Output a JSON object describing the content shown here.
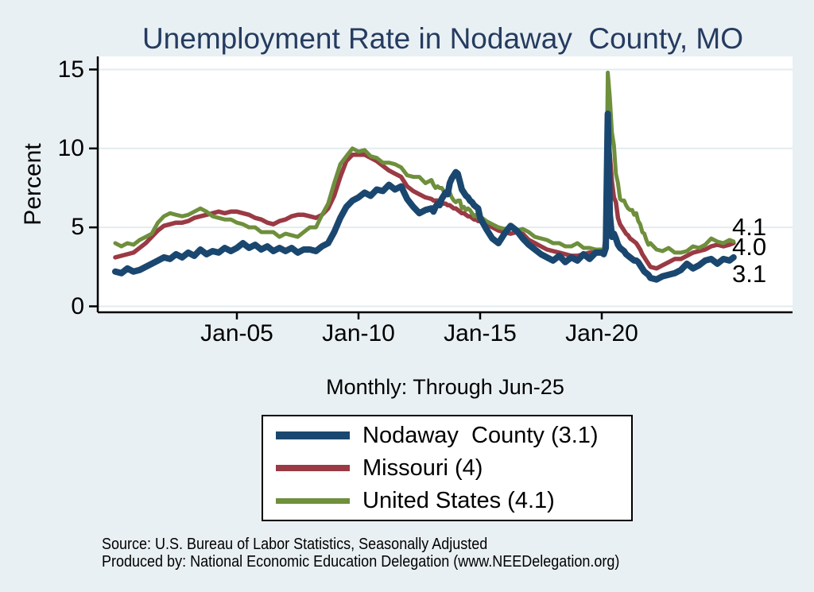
{
  "title": "Unemployment Rate in Nodaway  County, MO",
  "subtitle": "Monthly: Through Jun-25",
  "source_line1": "Source: U.S. Bureau of Labor Statistics, Seasonally Adjusted",
  "source_line2": "Produced by: National Economic Education Delegation (www.NEEDelegation.org)",
  "colors": {
    "background": "#e9f0f3",
    "plot_bg": "#ffffff",
    "grid": "#e2ecef",
    "axis": "#000000",
    "title_text": "#253b60",
    "nodaway": "#1a476f",
    "missouri": "#9a3a44",
    "us": "#6e8f3c"
  },
  "chart_data": {
    "type": "line",
    "title": "Unemployment Rate in Nodaway  County, MO",
    "xlabel": "",
    "ylabel": "Percent",
    "ylim": [
      0,
      15.8
    ],
    "x_range_label": "Jan-2000 through Jun-2025, monthly",
    "grid": true,
    "legend_position": "bottom",
    "y_ticks": [
      0,
      5,
      10,
      15
    ],
    "x_ticks": [
      {
        "label": "Jan-05",
        "year": 2005
      },
      {
        "label": "Jan-10",
        "year": 2010
      },
      {
        "label": "Jan-15",
        "year": 2015
      },
      {
        "label": "Jan-20",
        "year": 2020
      }
    ],
    "end_labels": [
      "4.1",
      "4.0",
      "3.1"
    ],
    "x": [
      2000,
      2000.25,
      2000.5,
      2000.75,
      2001,
      2001.25,
      2001.5,
      2001.75,
      2002,
      2002.25,
      2002.5,
      2002.75,
      2003,
      2003.25,
      2003.5,
      2003.75,
      2004,
      2004.25,
      2004.5,
      2004.75,
      2005,
      2005.25,
      2005.5,
      2005.75,
      2006,
      2006.25,
      2006.5,
      2006.75,
      2007,
      2007.25,
      2007.5,
      2007.75,
      2008,
      2008.25,
      2008.5,
      2008.75,
      2009,
      2009.25,
      2009.5,
      2009.75,
      2010,
      2010.25,
      2010.5,
      2010.75,
      2011,
      2011.25,
      2011.5,
      2011.75,
      2012,
      2012.25,
      2012.5,
      2012.75,
      2013,
      2013.083,
      2013.167,
      2013.25,
      2013.333,
      2013.417,
      2013.5,
      2013.583,
      2013.667,
      2013.75,
      2013.833,
      2013.917,
      2014,
      2014.083,
      2014.167,
      2014.25,
      2014.333,
      2014.417,
      2014.5,
      2014.583,
      2014.667,
      2014.75,
      2014.833,
      2014.917,
      2015,
      2015.25,
      2015.5,
      2015.75,
      2016,
      2016.25,
      2016.5,
      2016.75,
      2017,
      2017.25,
      2017.5,
      2017.75,
      2018,
      2018.25,
      2018.5,
      2018.75,
      2019,
      2019.25,
      2019.5,
      2019.75,
      2020,
      2020.083,
      2020.167,
      2020.25,
      2020.333,
      2020.417,
      2020.5,
      2020.583,
      2020.667,
      2020.75,
      2020.833,
      2020.917,
      2021,
      2021.083,
      2021.167,
      2021.25,
      2021.333,
      2021.417,
      2021.5,
      2021.583,
      2021.667,
      2021.75,
      2021.833,
      2021.917,
      2022,
      2022.25,
      2022.5,
      2022.75,
      2023,
      2023.25,
      2023.5,
      2023.75,
      2024,
      2024.25,
      2024.5,
      2024.75,
      2025,
      2025.25,
      2025.417
    ],
    "series": [
      {
        "name": "Nodaway  County (3.1)",
        "latest": 3.1,
        "color": "#1a476f",
        "line_width": 8,
        "values": [
          2.2,
          2.1,
          2.4,
          2.2,
          2.3,
          2.5,
          2.7,
          2.9,
          3.1,
          3.0,
          3.3,
          3.1,
          3.4,
          3.2,
          3.6,
          3.3,
          3.5,
          3.4,
          3.7,
          3.5,
          3.7,
          4.0,
          3.7,
          3.9,
          3.6,
          3.8,
          3.5,
          3.7,
          3.5,
          3.7,
          3.4,
          3.6,
          3.6,
          3.5,
          3.8,
          4.0,
          4.7,
          5.6,
          6.3,
          6.7,
          6.9,
          7.2,
          7.0,
          7.4,
          7.3,
          7.7,
          7.4,
          7.6,
          6.8,
          6.3,
          5.9,
          6.1,
          6.2,
          6.0,
          6.3,
          6.5,
          6.4,
          6.8,
          7.0,
          7.2,
          7.1,
          7.8,
          8.1,
          8.3,
          8.5,
          8.4,
          7.9,
          7.4,
          7.2,
          7.0,
          6.9,
          6.7,
          6.6,
          6.4,
          6.3,
          6.2,
          5.6,
          4.9,
          4.3,
          4.0,
          4.6,
          5.1,
          4.8,
          4.3,
          3.9,
          3.6,
          3.3,
          3.1,
          2.9,
          3.2,
          2.8,
          3.1,
          2.9,
          3.3,
          3.0,
          3.4,
          3.4,
          3.3,
          3.7,
          12.2,
          5.8,
          4.4,
          4.6,
          4.3,
          3.9,
          3.7,
          3.6,
          3.5,
          3.3,
          3.2,
          3.1,
          3.0,
          2.9,
          2.9,
          2.8,
          2.6,
          2.4,
          2.2,
          2.1,
          2.0,
          1.8,
          1.7,
          1.9,
          2.0,
          2.1,
          2.3,
          2.7,
          2.4,
          2.6,
          2.9,
          3.0,
          2.7,
          3.0,
          2.9,
          3.1
        ]
      },
      {
        "name": "Missouri (4)",
        "latest": 4.0,
        "color": "#9a3a44",
        "line_width": 5.5,
        "values": [
          3.1,
          3.2,
          3.3,
          3.4,
          3.7,
          4.0,
          4.4,
          4.8,
          5.1,
          5.2,
          5.3,
          5.3,
          5.4,
          5.6,
          5.7,
          5.8,
          5.9,
          6.0,
          5.9,
          6.0,
          6.0,
          5.9,
          5.8,
          5.6,
          5.5,
          5.3,
          5.2,
          5.4,
          5.5,
          5.7,
          5.8,
          5.8,
          5.7,
          5.6,
          5.8,
          6.2,
          7.0,
          8.2,
          9.2,
          9.6,
          9.6,
          9.6,
          9.4,
          9.2,
          8.9,
          8.6,
          8.4,
          8.2,
          7.6,
          7.3,
          7.1,
          6.9,
          6.8,
          6.7,
          6.7,
          6.7,
          6.6,
          6.6,
          6.5,
          6.5,
          6.4,
          6.4,
          6.3,
          6.2,
          6.2,
          6.1,
          6.0,
          5.9,
          5.9,
          5.8,
          5.7,
          5.7,
          5.6,
          5.5,
          5.5,
          5.4,
          5.4,
          5.2,
          5.0,
          4.8,
          4.7,
          4.6,
          4.7,
          4.6,
          4.2,
          4.0,
          3.8,
          3.6,
          3.5,
          3.4,
          3.3,
          3.2,
          3.2,
          3.3,
          3.4,
          3.4,
          3.5,
          3.5,
          4.5,
          10.8,
          9.6,
          7.9,
          6.9,
          6.6,
          5.6,
          5.2,
          5.0,
          4.8,
          4.6,
          4.5,
          4.3,
          4.2,
          4.1,
          4.0,
          3.8,
          3.6,
          3.3,
          3.1,
          2.9,
          2.7,
          2.5,
          2.4,
          2.6,
          2.8,
          3.0,
          3.0,
          3.2,
          3.4,
          3.5,
          3.6,
          3.8,
          3.9,
          3.8,
          3.9,
          4.0
        ]
      },
      {
        "name": "United States (4.1)",
        "latest": 4.1,
        "color": "#6e8f3c",
        "line_width": 5,
        "values": [
          4.0,
          3.8,
          4.0,
          3.9,
          4.2,
          4.4,
          4.6,
          5.3,
          5.7,
          5.9,
          5.8,
          5.7,
          5.8,
          6.0,
          6.2,
          6.0,
          5.7,
          5.6,
          5.5,
          5.5,
          5.3,
          5.2,
          5.0,
          5.0,
          4.7,
          4.7,
          4.7,
          4.4,
          4.6,
          4.5,
          4.4,
          4.7,
          5.0,
          5.0,
          5.8,
          6.5,
          7.8,
          9.0,
          9.5,
          10.0,
          9.8,
          9.9,
          9.5,
          9.4,
          9.1,
          9.1,
          9.0,
          8.8,
          8.3,
          8.2,
          8.2,
          7.8,
          8.0,
          7.7,
          7.5,
          7.6,
          7.5,
          7.5,
          7.3,
          7.2,
          7.2,
          7.2,
          6.9,
          6.7,
          6.6,
          6.7,
          6.7,
          6.2,
          6.3,
          6.1,
          6.2,
          6.1,
          5.9,
          5.7,
          5.8,
          5.6,
          5.7,
          5.4,
          5.2,
          5.0,
          4.9,
          5.0,
          4.8,
          4.9,
          4.7,
          4.4,
          4.3,
          4.2,
          4.0,
          4.0,
          3.8,
          3.8,
          4.0,
          3.7,
          3.7,
          3.6,
          3.6,
          3.5,
          4.4,
          14.8,
          13.2,
          11.0,
          10.2,
          8.4,
          7.8,
          6.8,
          6.7,
          6.7,
          6.4,
          6.2,
          6.1,
          6.1,
          5.8,
          5.9,
          5.4,
          5.2,
          4.7,
          4.6,
          4.2,
          3.9,
          4.0,
          3.6,
          3.5,
          3.7,
          3.4,
          3.4,
          3.5,
          3.8,
          3.7,
          3.9,
          4.3,
          4.1,
          4.0,
          4.2,
          4.1
        ]
      }
    ]
  }
}
